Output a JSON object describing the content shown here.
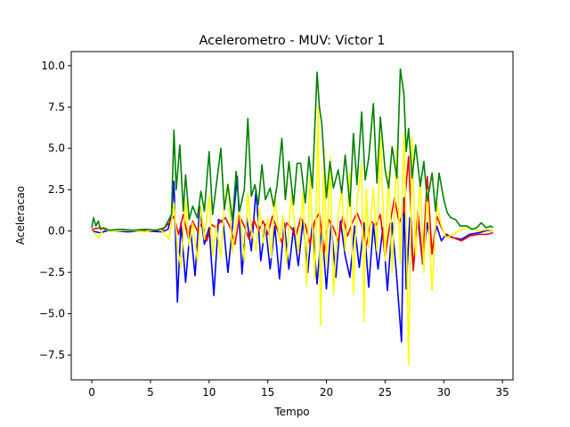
{
  "chart_data": {
    "type": "line",
    "title": "Acelerometro - MUV: Victor 1",
    "xlabel": "Tempo",
    "ylabel": "Aceleracao",
    "xlim": [
      -1.75,
      35.9
    ],
    "ylim": [
      -9.0,
      10.85
    ],
    "xticks": [
      0,
      5,
      10,
      15,
      20,
      25,
      30,
      35
    ],
    "xtick_labels": [
      "0",
      "5",
      "10",
      "15",
      "20",
      "25",
      "30",
      "35"
    ],
    "yticks": [
      -7.5,
      -5.0,
      -2.5,
      0.0,
      2.5,
      5.0,
      7.5,
      10.0
    ],
    "ytick_labels": [
      "−7.5",
      "−5.0",
      "−2.5",
      "0.0",
      "2.5",
      "5.0",
      "7.5",
      "10.0"
    ],
    "grid": false,
    "legend": "none",
    "series": [
      {
        "color": "#0000ff",
        "x": [
          0,
          0.7,
          1.5,
          3,
          4.5,
          6,
          6.5,
          6.8,
          7.0,
          7.3,
          7.6,
          8.0,
          8.4,
          8.8,
          9.2,
          9.6,
          10.0,
          10.4,
          10.8,
          11.2,
          11.6,
          12.0,
          12.4,
          12.8,
          13.2,
          13.6,
          14.0,
          14.4,
          14.8,
          15.2,
          15.6,
          16.0,
          16.4,
          16.8,
          17.2,
          17.6,
          18.0,
          18.4,
          18.8,
          19.2,
          19.6,
          20.0,
          20.4,
          20.8,
          21.2,
          21.6,
          22.0,
          22.4,
          22.8,
          23.2,
          23.6,
          24.0,
          24.4,
          24.8,
          25.2,
          25.6,
          26.0,
          26.4,
          26.6,
          26.8,
          27.1,
          27.4,
          27.8,
          28.2,
          28.6,
          29.0,
          29.4,
          29.8,
          30.2,
          30.8,
          31.5,
          32.2,
          33.0,
          33.7,
          34.2
        ],
        "y": [
          0.0,
          -0.1,
          0.05,
          -0.05,
          0.0,
          -0.05,
          0.1,
          1.0,
          3.0,
          -4.3,
          0.5,
          -3.1,
          0.3,
          -2.7,
          1.5,
          -0.8,
          0.2,
          -3.9,
          0.7,
          0.5,
          -2.5,
          0.3,
          3.3,
          -2.6,
          0.8,
          -1.2,
          2.5,
          -1.8,
          0.4,
          -2.3,
          0.3,
          -2.9,
          0.5,
          -2.3,
          0.2,
          -2.1,
          0.6,
          -2.5,
          0.5,
          -3.2,
          0.3,
          -3.5,
          0.4,
          -2.8,
          0.6,
          -1.5,
          -2.8,
          0.3,
          -2.2,
          0.5,
          -3.4,
          0.4,
          -2.3,
          0.2,
          -3.6,
          0.5,
          -2.9,
          -6.7,
          2.0,
          -3.5,
          0.8,
          -2.3,
          0.7,
          -2.0,
          0.5,
          -1.2,
          0.3,
          -0.6,
          -0.2,
          -0.4,
          -0.5,
          -0.2,
          -0.1,
          0.05,
          0.0
        ]
      },
      {
        "color": "#ff0000",
        "x": [
          0,
          0.7,
          1.5,
          3,
          4.5,
          6,
          6.6,
          7.0,
          7.4,
          7.8,
          8.2,
          8.6,
          9.0,
          9.4,
          9.8,
          10.2,
          10.6,
          11.0,
          11.4,
          11.8,
          12.2,
          12.6,
          13.0,
          13.4,
          13.8,
          14.2,
          14.6,
          15.0,
          15.4,
          15.8,
          16.2,
          16.6,
          17.0,
          17.4,
          17.8,
          18.2,
          18.6,
          19.0,
          19.4,
          19.8,
          20.2,
          20.6,
          21.0,
          21.4,
          21.8,
          22.2,
          22.6,
          23.0,
          23.4,
          23.8,
          24.2,
          24.6,
          25.0,
          25.4,
          25.8,
          26.2,
          26.6,
          27.0,
          27.4,
          27.8,
          28.2,
          28.6,
          29.0,
          29.4,
          29.8,
          30.2,
          30.8,
          31.5,
          32.2,
          33.0,
          33.7,
          34.2
        ],
        "y": [
          0.1,
          0.2,
          0.0,
          0.05,
          0.0,
          0.05,
          0.5,
          0.9,
          -0.2,
          1.0,
          -0.4,
          0.6,
          0.0,
          0.5,
          -0.6,
          0.4,
          0.2,
          0.6,
          0.8,
          0.2,
          -0.8,
          0.9,
          0.3,
          -0.5,
          0.7,
          0.0,
          0.6,
          -0.2,
          0.9,
          0.1,
          -0.7,
          0.5,
          0.2,
          -0.3,
          0.8,
          0.4,
          -0.8,
          0.6,
          1.1,
          -1.3,
          0.7,
          0.2,
          -0.6,
          0.9,
          -0.3,
          0.5,
          1.1,
          0.4,
          -0.9,
          0.6,
          0.3,
          1.0,
          -1.6,
          0.4,
          2.0,
          0.5,
          1.2,
          4.5,
          -2.4,
          1.2,
          -1.9,
          3.3,
          -1.4,
          0.9,
          0.2,
          -0.3,
          -0.4,
          -0.6,
          -0.3,
          -0.2,
          -0.2,
          -0.1
        ]
      },
      {
        "color": "#ffff00",
        "x": [
          0,
          0.6,
          1.0,
          1.5,
          3,
          4.5,
          5.5,
          6.0,
          6.6,
          7.0,
          7.3,
          7.6,
          8.0,
          8.3,
          8.6,
          9.0,
          9.3,
          9.6,
          10.0,
          10.3,
          10.6,
          11.0,
          11.3,
          11.6,
          12.0,
          12.3,
          12.6,
          13.0,
          13.3,
          13.6,
          14.0,
          14.3,
          14.6,
          15.0,
          15.3,
          15.6,
          16.0,
          16.3,
          16.6,
          17.0,
          17.3,
          17.6,
          18.0,
          18.3,
          18.6,
          19.0,
          19.3,
          19.5,
          19.8,
          20.0,
          20.3,
          20.6,
          21.0,
          21.3,
          21.6,
          22.0,
          22.3,
          22.6,
          23.0,
          23.2,
          23.4,
          23.6,
          24.0,
          24.3,
          24.6,
          25.0,
          25.3,
          25.6,
          26.0,
          26.3,
          26.6,
          26.8,
          27.0,
          27.3,
          27.6,
          28.0,
          28.3,
          28.6,
          29.0,
          29.4,
          29.8,
          30.2,
          30.8,
          31.5,
          32.2,
          33.0,
          33.7,
          34.2
        ],
        "y": [
          0.0,
          -0.4,
          0.2,
          0.0,
          0.05,
          -0.05,
          0.1,
          0.0,
          -0.5,
          1.7,
          -1.0,
          -2.2,
          1.8,
          -0.9,
          0.5,
          -1.8,
          1.5,
          -0.5,
          2.1,
          -1.5,
          0.3,
          -1.6,
          1.7,
          2.9,
          -1.3,
          0.6,
          1.2,
          -1.8,
          2.3,
          0.1,
          -1.2,
          1.4,
          -0.7,
          0.8,
          -1.6,
          2.1,
          -0.6,
          0.9,
          -2.0,
          2.1,
          0.4,
          -1.4,
          2.3,
          -3.3,
          3.3,
          -2.9,
          7.5,
          -5.7,
          5.0,
          -2.0,
          4.5,
          -3.8,
          1.0,
          2.5,
          -1.2,
          3.5,
          -3.8,
          1.8,
          4.0,
          -5.5,
          2.5,
          -1.0,
          2.6,
          -1.2,
          5.7,
          -1.8,
          3.6,
          -2.5,
          5.1,
          -2.0,
          5.9,
          0.5,
          -8.1,
          5.7,
          -1.5,
          3.2,
          -2.5,
          2.5,
          -3.6,
          1.7,
          0.3,
          -0.4,
          -0.2,
          0.1,
          0.2,
          0.0,
          0.1,
          0.0
        ]
      },
      {
        "color": "#008000",
        "x": [
          0,
          0.15,
          0.35,
          0.55,
          0.75,
          1.0,
          1.5,
          2.5,
          3.5,
          4.5,
          5.5,
          6.2,
          6.8,
          7.0,
          7.2,
          7.5,
          7.8,
          8.0,
          8.3,
          8.6,
          9.0,
          9.3,
          9.6,
          10.0,
          10.3,
          10.6,
          11.0,
          11.3,
          11.6,
          12.0,
          12.3,
          12.6,
          13.0,
          13.3,
          13.6,
          13.9,
          14.2,
          14.5,
          14.8,
          15.2,
          15.5,
          15.8,
          16.2,
          16.5,
          16.8,
          17.2,
          17.5,
          17.8,
          18.2,
          18.5,
          18.8,
          19.2,
          19.4,
          19.6,
          20.0,
          20.3,
          20.6,
          21.0,
          21.3,
          21.6,
          22.0,
          22.3,
          22.6,
          23.0,
          23.3,
          23.6,
          24.0,
          24.3,
          24.6,
          25.0,
          25.3,
          25.6,
          26.0,
          26.3,
          26.6,
          26.8,
          27.0,
          27.3,
          27.6,
          28.0,
          28.3,
          28.6,
          29.0,
          29.3,
          29.6,
          30.0,
          30.3,
          30.6,
          31.0,
          31.4,
          32.0,
          32.4,
          32.8,
          33.2,
          33.6,
          34.0,
          34.2
        ],
        "y": [
          0.2,
          0.8,
          0.3,
          0.6,
          0.1,
          0.2,
          0.05,
          0.1,
          0.05,
          0.1,
          0.05,
          0.2,
          1.0,
          6.1,
          2.5,
          5.2,
          1.2,
          3.4,
          0.7,
          1.5,
          0.8,
          2.4,
          1.2,
          4.8,
          1.0,
          2.7,
          5.0,
          1.3,
          2.8,
          0.6,
          3.6,
          1.2,
          2.5,
          6.8,
          2.1,
          2.8,
          1.6,
          4.0,
          1.9,
          2.6,
          1.5,
          2.8,
          5.6,
          1.9,
          4.2,
          1.6,
          4.1,
          4.1,
          1.7,
          4.5,
          2.6,
          9.6,
          7.5,
          6.5,
          2.0,
          4.2,
          2.6,
          3.7,
          2.3,
          4.6,
          1.5,
          5.9,
          2.8,
          7.2,
          3.1,
          4.4,
          7.7,
          2.9,
          6.9,
          3.7,
          2.6,
          5.1,
          3.2,
          9.8,
          8.3,
          4.8,
          6.2,
          3.2,
          5.2,
          2.7,
          4.2,
          1.8,
          3.5,
          1.2,
          3.5,
          1.9,
          1.1,
          0.8,
          0.7,
          0.3,
          0.3,
          0.1,
          0.2,
          0.5,
          0.2,
          0.3,
          0.2
        ]
      }
    ]
  }
}
